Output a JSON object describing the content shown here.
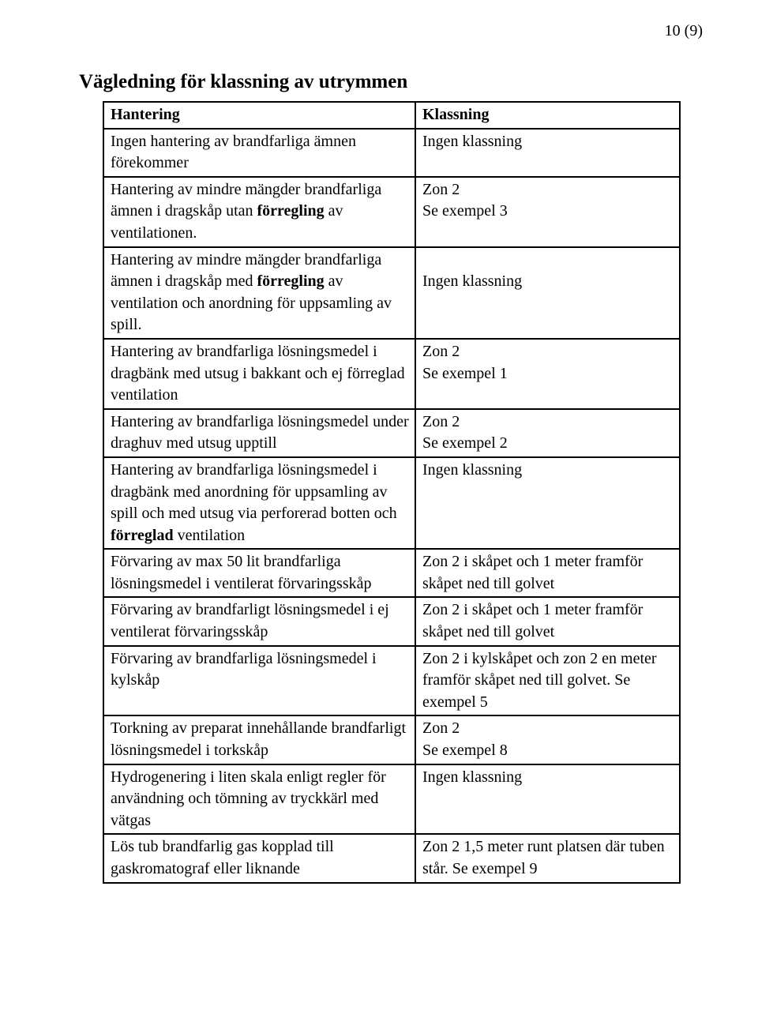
{
  "page_number": "10 (9)",
  "title": "Vägledning för klassning av utrymmen",
  "header": {
    "col1": "Hantering",
    "col2": "Klassning"
  },
  "rows": [
    {
      "left": [
        {
          "t": "Ingen hantering av brandfarliga ämnen förekommer"
        }
      ],
      "right": [
        {
          "t": "Ingen klassning"
        }
      ]
    },
    {
      "left": [
        {
          "t": "Hantering av mindre mängder brandfarliga ämnen i dragskåp utan "
        },
        {
          "t": "förregling",
          "b": true
        },
        {
          "t": " av ventilationen."
        }
      ],
      "right": [
        {
          "t": "Zon 2"
        },
        {
          "br": true
        },
        {
          "t": "Se exempel 3"
        }
      ]
    },
    {
      "left": [
        {
          "t": "Hantering av mindre mängder brandfarliga ämnen i dragskåp med "
        },
        {
          "t": "förregling",
          "b": true
        },
        {
          "t": " av ventilation och anordning för uppsamling av spill."
        }
      ],
      "right": [
        {
          "br": true
        },
        {
          "t": "Ingen klassning"
        }
      ]
    },
    {
      "left": [
        {
          "t": "Hantering av brandfarliga lösningsmedel i dragbänk med utsug i bakkant och ej förreglad ventilation"
        }
      ],
      "right": [
        {
          "t": "Zon 2"
        },
        {
          "br": true
        },
        {
          "t": "Se exempel 1"
        }
      ]
    },
    {
      "left": [
        {
          "t": "Hantering av brandfarliga lösningsmedel under draghuv med utsug upptill"
        }
      ],
      "right": [
        {
          "t": "Zon 2"
        },
        {
          "br": true
        },
        {
          "t": "Se exempel 2"
        }
      ]
    },
    {
      "left": [
        {
          "t": "Hantering av brandfarliga lösningsmedel i dragbänk med anordning för uppsamling av spill och med utsug via perforerad botten och "
        },
        {
          "t": "förreglad",
          "b": true
        },
        {
          "t": " ventilation"
        }
      ],
      "right": [
        {
          "t": "Ingen klassning"
        }
      ]
    },
    {
      "left": [
        {
          "t": "Förvaring av max 50 lit brandfarliga lösningsmedel i ventilerat förvaringsskåp"
        }
      ],
      "right": [
        {
          "t": "Zon 2 i skåpet och 1 meter framför skåpet ned till golvet"
        }
      ]
    },
    {
      "left": [
        {
          "t": "Förvaring av brandfarligt lösningsmedel i ej ventilerat förvaringsskåp"
        }
      ],
      "right": [
        {
          "t": "Zon 2 i skåpet och 1 meter framför skåpet ned till golvet"
        }
      ]
    },
    {
      "left": [
        {
          "t": "Förvaring av brandfarliga lösningsmedel i kylskåp"
        }
      ],
      "right": [
        {
          "t": "Zon 2 i kylskåpet och zon 2 en meter framför skåpet ned till golvet. Se exempel 5"
        }
      ]
    },
    {
      "left": [
        {
          "t": "Torkning av preparat innehållande brandfarligt lösningsmedel i torkskåp"
        }
      ],
      "right": [
        {
          "t": "Zon 2"
        },
        {
          "br": true
        },
        {
          "t": "Se exempel 8"
        }
      ]
    },
    {
      "left": [
        {
          "t": "Hydrogenering i liten skala enligt regler för användning och tömning av tryckkärl med vätgas"
        }
      ],
      "right": [
        {
          "t": "Ingen klassning"
        }
      ]
    },
    {
      "left": [
        {
          "t": "Lös tub brandfarlig gas kopplad till gaskromatograf eller liknande"
        }
      ],
      "right": [
        {
          "t": "Zon 2 1,5 meter runt platsen där tuben står. Se exempel 9"
        }
      ]
    }
  ]
}
